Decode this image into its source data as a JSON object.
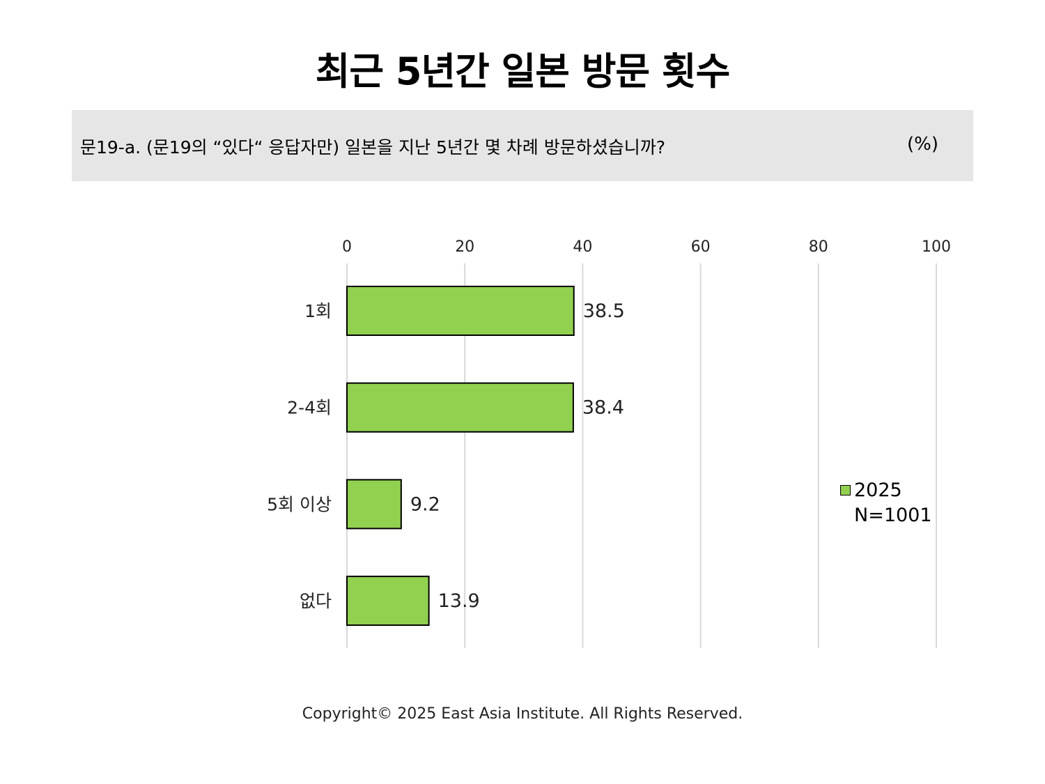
{
  "title": "최근 5년간 일본 방문 횟수",
  "question": "문19-a. (문19의 “있다“ 응답자만) 일본을 지난 5년간 몇 차례 방문하셨습니까?",
  "unit": "(%)",
  "legend": {
    "series": "2025",
    "note": "N=1001"
  },
  "copyright": "Copyright© 2025 East Asia Institute. All Rights Reserved.",
  "colors": {
    "bar": "#92d050",
    "grid": "#d9d9d9",
    "question_bg": "#e7e6e6"
  },
  "chart_data": {
    "type": "bar",
    "orientation": "horizontal",
    "categories": [
      "1회",
      "2-4회",
      "5회 이상",
      "없다"
    ],
    "series": [
      {
        "name": "2025",
        "values": [
          38.5,
          38.4,
          9.2,
          13.9
        ]
      }
    ],
    "data_labels": [
      "38.5",
      "38.4",
      "9.2",
      "13.9"
    ],
    "xlim": [
      0,
      100
    ],
    "xticks": [
      0,
      20,
      40,
      60,
      80,
      100
    ],
    "tick_labels": [
      "0",
      "20",
      "40",
      "60",
      "80",
      "100"
    ],
    "axis_position": "top",
    "grid": true,
    "legend_position": "right"
  }
}
